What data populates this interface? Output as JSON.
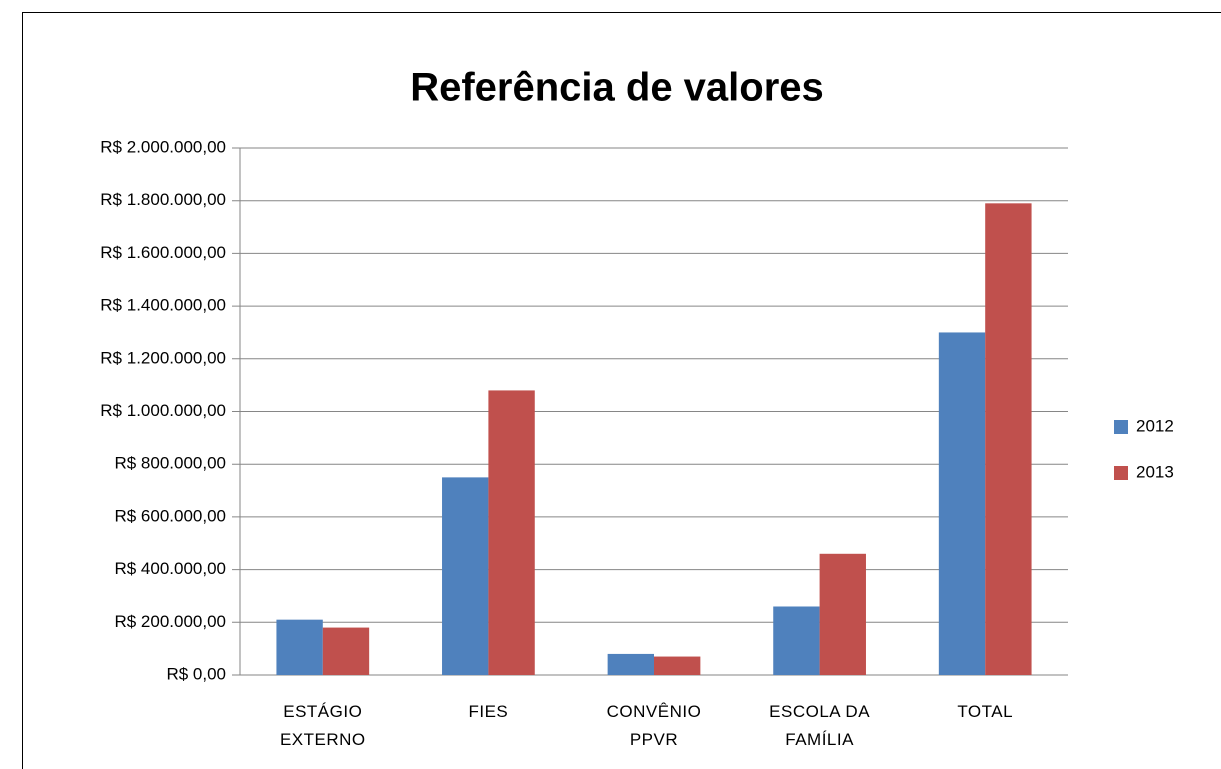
{
  "chart_data": {
    "type": "bar",
    "title": "Referência de valores",
    "categories": [
      "ESTÁGIO EXTERNO",
      "FIES",
      "CONVÊNIO PPVR",
      "ESCOLA DA FAMÍLIA",
      "TOTAL"
    ],
    "series": [
      {
        "name": "2012",
        "color": "#4f81bd",
        "values": [
          210000,
          750000,
          80000,
          260000,
          1300000
        ]
      },
      {
        "name": "2013",
        "color": "#c0504d",
        "values": [
          180000,
          1080000,
          70000,
          460000,
          1790000
        ]
      }
    ],
    "ylim": [
      0,
      2000000
    ],
    "yticks": [
      {
        "value": 0,
        "label": "R$ 0,00"
      },
      {
        "value": 200000,
        "label": "R$ 200.000,00"
      },
      {
        "value": 400000,
        "label": "R$ 400.000,00"
      },
      {
        "value": 600000,
        "label": "R$ 600.000,00"
      },
      {
        "value": 800000,
        "label": "R$ 800.000,00"
      },
      {
        "value": 1000000,
        "label": "R$ 1.000.000,00"
      },
      {
        "value": 1200000,
        "label": "R$ 1.200.000,00"
      },
      {
        "value": 1400000,
        "label": "R$ 1.400.000,00"
      },
      {
        "value": 1600000,
        "label": "R$ 1.600.000,00"
      },
      {
        "value": 1800000,
        "label": "R$ 1.800.000,00"
      },
      {
        "value": 2000000,
        "label": "R$ 2.000.000,00"
      }
    ],
    "grid": true,
    "legend": "right"
  }
}
